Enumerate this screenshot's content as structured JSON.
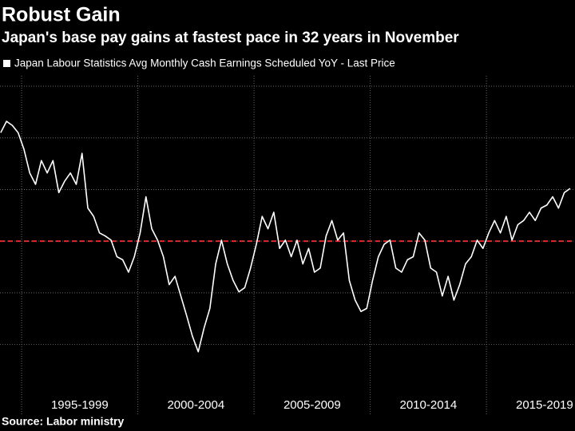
{
  "chart_data": {
    "type": "line",
    "title": "Robust Gain",
    "subtitle": "Japan's base pay gains at fastest pace in 32 years in November",
    "source": "Source: Labor ministry",
    "x": [
      1994.1,
      1994.35,
      1994.6,
      1994.85,
      1995.1,
      1995.35,
      1995.6,
      1995.85,
      1996.1,
      1996.35,
      1996.6,
      1996.85,
      1997.1,
      1997.35,
      1997.6,
      1997.85,
      1998.1,
      1998.35,
      1998.6,
      1998.85,
      1999.1,
      1999.35,
      1999.6,
      1999.85,
      2000.1,
      2000.35,
      2000.6,
      2000.85,
      2001.1,
      2001.35,
      2001.6,
      2001.85,
      2002.1,
      2002.35,
      2002.6,
      2002.85,
      2003.1,
      2003.35,
      2003.6,
      2003.85,
      2004.1,
      2004.35,
      2004.6,
      2004.85,
      2005.1,
      2005.35,
      2005.6,
      2005.85,
      2006.1,
      2006.35,
      2006.6,
      2006.85,
      2007.1,
      2007.35,
      2007.6,
      2007.85,
      2008.1,
      2008.35,
      2008.6,
      2008.85,
      2009.1,
      2009.35,
      2009.6,
      2009.85,
      2010.1,
      2010.35,
      2010.6,
      2010.85,
      2011.1,
      2011.35,
      2011.6,
      2011.85,
      2012.1,
      2012.35,
      2012.6,
      2012.85,
      2013.1,
      2013.35,
      2013.6,
      2013.85,
      2014.1,
      2014.35,
      2014.6,
      2014.85,
      2015.1,
      2015.35,
      2015.6,
      2015.85,
      2016.1,
      2016.35,
      2016.6,
      2016.85,
      2017.1,
      2017.35,
      2017.6,
      2017.85,
      2018.1,
      2018.35,
      2018.6
    ],
    "series": [
      {
        "name": "Japan Labour Statistics Avg Monthly Cash Earnings Scheduled YoY - Last Price",
        "color": "#ffffff",
        "values": [
          1.05,
          1.16,
          1.12,
          1.05,
          0.89,
          0.66,
          0.55,
          0.78,
          0.66,
          0.78,
          0.47,
          0.58,
          0.66,
          0.55,
          0.85,
          0.32,
          0.24,
          0.08,
          0.05,
          0.01,
          -0.15,
          -0.18,
          -0.3,
          -0.15,
          0.08,
          0.43,
          0.12,
          0.01,
          -0.15,
          -0.42,
          -0.34,
          -0.53,
          -0.72,
          -0.92,
          -1.07,
          -0.84,
          -0.65,
          -0.22,
          0.01,
          -0.22,
          -0.38,
          -0.49,
          -0.45,
          -0.26,
          -0.03,
          0.24,
          0.12,
          0.28,
          -0.07,
          0.01,
          -0.15,
          0.01,
          -0.22,
          -0.07,
          -0.3,
          -0.26,
          0.05,
          0.2,
          0.01,
          0.08,
          -0.38,
          -0.57,
          -0.68,
          -0.65,
          -0.38,
          -0.15,
          -0.03,
          0.01,
          -0.26,
          -0.3,
          -0.18,
          -0.15,
          0.08,
          0.01,
          -0.26,
          -0.3,
          -0.53,
          -0.34,
          -0.57,
          -0.42,
          -0.22,
          -0.15,
          0.01,
          -0.07,
          0.08,
          0.2,
          0.08,
          0.24,
          0.01,
          0.16,
          0.2,
          0.28,
          0.2,
          0.32,
          0.35,
          0.43,
          0.32,
          0.47,
          0.51
        ]
      }
    ],
    "xlim": [
      1994.07,
      2018.81
    ],
    "xticks": [
      1995,
      2000,
      2005,
      2010,
      2015
    ],
    "x_period_labels": [
      {
        "value": 1997.5,
        "label": "1995-1999"
      },
      {
        "value": 2002.5,
        "label": "2000-2004"
      },
      {
        "value": 2007.5,
        "label": "2005-2009"
      },
      {
        "value": 2012.5,
        "label": "2010-2014"
      },
      {
        "value": 2017.5,
        "label": "2015-2019"
      }
    ],
    "ylim": [
      -1.35,
      1.6
    ],
    "yticks": [
      -1,
      -0.5,
      0,
      0.5,
      1,
      1.5
    ],
    "grid": true,
    "reference_line": {
      "value": 0,
      "color": "#e0282e"
    }
  }
}
